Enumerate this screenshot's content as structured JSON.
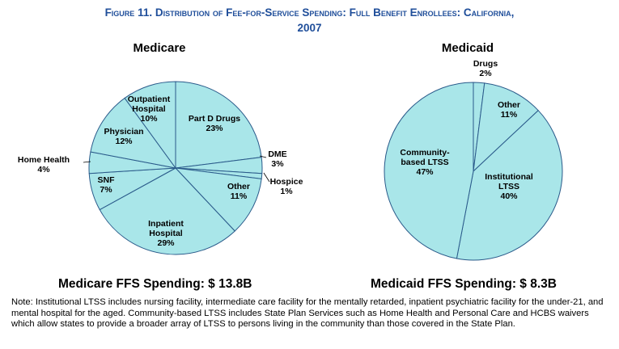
{
  "figure": {
    "title_line1": "Figure 11. Distribution of Fee-for-Service Spending: Full Benefit Enrollees:  California,",
    "title_line2": "2007"
  },
  "colors": {
    "slice_fill": "#a9e6e9",
    "slice_stroke": "#2a5a8a",
    "title": "#1f4e9a"
  },
  "chart_data": [
    {
      "type": "pie",
      "title": "Medicare",
      "slices": [
        {
          "label": [
            "Part D Drugs",
            "23%"
          ],
          "value": 23
        },
        {
          "label": [
            "DME",
            "3%"
          ],
          "value": 3
        },
        {
          "label": [
            "Hospice",
            "1%"
          ],
          "value": 1
        },
        {
          "label": [
            "Other",
            "11%"
          ],
          "value": 11
        },
        {
          "label": [
            "Inpatient",
            "Hospital",
            "29%"
          ],
          "value": 29
        },
        {
          "label": [
            "SNF",
            "7%"
          ],
          "value": 7
        },
        {
          "label": [
            "Home Health",
            "4%"
          ],
          "value": 4
        },
        {
          "label": [
            "Physician",
            "12%"
          ],
          "value": 12
        },
        {
          "label": [
            "Outpatient",
            "Hospital",
            "10%"
          ],
          "value": 10
        }
      ]
    },
    {
      "type": "pie",
      "title": "Medicaid",
      "slices": [
        {
          "label": [
            "Drugs",
            "2%"
          ],
          "value": 2
        },
        {
          "label": [
            "Other",
            "11%"
          ],
          "value": 11
        },
        {
          "label": [
            "Institutional",
            "LTSS",
            "40%"
          ],
          "value": 40
        },
        {
          "label": [
            "Community-",
            "based LTSS",
            "47%"
          ],
          "value": 47
        }
      ]
    }
  ],
  "spending": {
    "medicare": "Medicare FFS Spending: $ 13.8B",
    "medicaid": "Medicaid FFS Spending: $ 8.3B"
  },
  "note": "Note: Institutional LTSS includes nursing facility, intermediate care facility for the mentally retarded, inpatient psychiatric facility for the under-21, and mental hospital for the aged. Community-based LTSS includes State Plan Services such as Home Health and Personal Care and HCBS waivers which allow states to provide a broader array of LTSS to persons living in the community than those covered in the State Plan."
}
